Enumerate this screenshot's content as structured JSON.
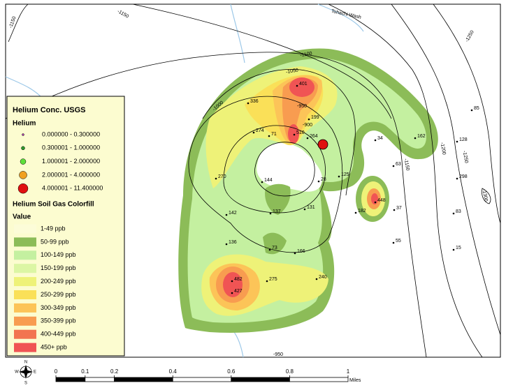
{
  "map": {
    "river_label": "Tohachi Wash",
    "contour_labels": [
      "-1150",
      "-1150",
      "-1100",
      "-1050",
      "-1000",
      "-950",
      "-900",
      "-1250",
      "-1200",
      "-1150",
      "-1250",
      "-1300",
      "-950"
    ],
    "points": [
      "401",
      "336",
      "199",
      "274",
      "71",
      "510",
      "264",
      "162",
      "34",
      "128",
      "85",
      "270",
      "144",
      "125",
      "63",
      "298",
      "28",
      "448",
      "142",
      "137",
      "131",
      "182",
      "37",
      "83",
      "136",
      "73",
      "166",
      "55",
      "15",
      "482",
      "427",
      "275",
      "240"
    ],
    "legend": {
      "title": "Helium Conc. USGS",
      "symbol_heading": "Helium",
      "symbols": [
        {
          "label": "0.000000 - 0.300000",
          "color": "#b040b0"
        },
        {
          "label": "0.300001 - 1.000000",
          "color": "#2e9a2e"
        },
        {
          "label": "1.000001 - 2.000000",
          "color": "#5ee03a"
        },
        {
          "label": "2.000001 - 4.000000",
          "color": "#f0a020"
        },
        {
          "label": "4.000001 - 11.400000",
          "color": "#e01010"
        }
      ],
      "fill_title": "Helium Soil Gas Colorfill",
      "fill_heading": "Value",
      "classes": [
        {
          "label": "1-49 ppb",
          "color": "#fcfcd8"
        },
        {
          "label": "50-99 ppb",
          "color": "#8cbc58"
        },
        {
          "label": "100-149 ppb",
          "color": "#c4f0a0"
        },
        {
          "label": "150-199 ppb",
          "color": "#dcf6a4"
        },
        {
          "label": "200-249 ppb",
          "color": "#eef278"
        },
        {
          "label": "250-299 ppb",
          "color": "#fae058"
        },
        {
          "label": "300-349 ppb",
          "color": "#fcc458"
        },
        {
          "label": "350-399 ppb",
          "color": "#f89c50"
        },
        {
          "label": "400-449 ppb",
          "color": "#f27450"
        },
        {
          "label": "450+ ppb",
          "color": "#f05454"
        }
      ]
    },
    "scale": {
      "ticks": [
        0,
        0.1,
        0.2,
        0.4,
        0.6,
        0.8,
        1
      ],
      "unit": "Miles"
    },
    "compass": [
      "N",
      "E",
      "S",
      "W"
    ]
  }
}
